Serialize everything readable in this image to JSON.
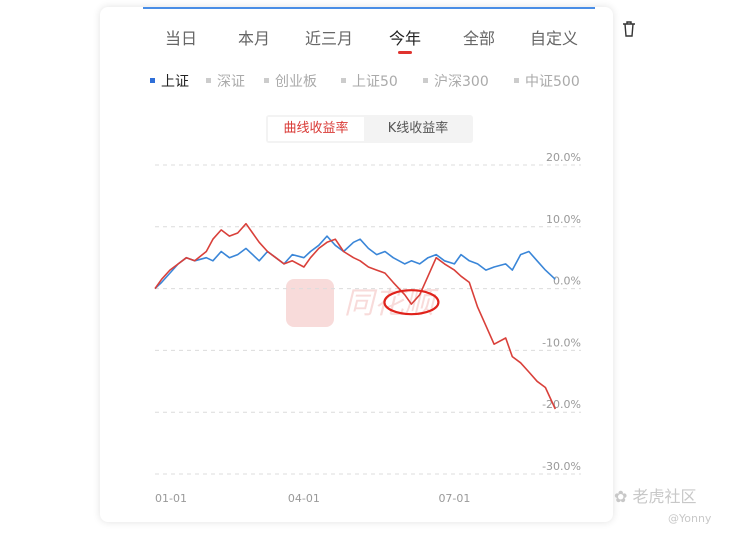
{
  "tabs": [
    "当日",
    "本月",
    "近三月",
    "今年",
    "全部",
    "自定义"
  ],
  "active_tab": "今年",
  "legend": [
    "上证",
    "深证",
    "创业板",
    "上证50",
    "沪深300",
    "中证500"
  ],
  "active_legend": "上证",
  "toggle": {
    "curve_label": "曲线收益率",
    "kline_label": "K线收益率",
    "active": "曲线收益率"
  },
  "watermark_center": "同花顺",
  "watermark_social": "老虎社区",
  "watermark_user": "@Yonny",
  "colors": {
    "user_line": "#d9403a",
    "index_line": "#3a86d8",
    "accent": "#e0332f",
    "highlight_circle": "#e0221b"
  },
  "icons": {
    "trash": "trash-icon",
    "watermark": "tiger-logo-icon"
  },
  "chart_data": {
    "type": "line",
    "x_ticks": [
      "01-01",
      "04-01",
      "07-01"
    ],
    "y_ticks": [
      "20.0%",
      "10.0%",
      "0.0%",
      "-10.0%",
      "-20.0%",
      "-30.0%"
    ],
    "ylim": [
      -30,
      20
    ],
    "grid": true,
    "x_range": [
      "2021-01-01",
      "2021-09-01"
    ],
    "x_tick_dates": [
      "2021-01-01",
      "2021-04-01",
      "2021-07-01"
    ],
    "annotation": "red ellipse around early-June dip",
    "annotation_x": "2021-06-05",
    "annotation_y": -2.2,
    "series": [
      {
        "name": "",
        "x": [
          "2021-01-01",
          "2021-01-05",
          "2021-01-10",
          "2021-01-15",
          "2021-01-20",
          "2021-01-25",
          "2021-02-01",
          "2021-02-05",
          "2021-02-10",
          "2021-02-15",
          "2021-02-20",
          "2021-02-25",
          "2021-03-01",
          "2021-03-05",
          "2021-03-10",
          "2021-03-15",
          "2021-03-20",
          "2021-03-25",
          "2021-04-01",
          "2021-04-05",
          "2021-04-10",
          "2021-04-15",
          "2021-04-20",
          "2021-04-25",
          "2021-05-01",
          "2021-05-05",
          "2021-05-10",
          "2021-05-15",
          "2021-05-20",
          "2021-05-25",
          "2021-06-01",
          "2021-06-05",
          "2021-06-10",
          "2021-06-15",
          "2021-06-20",
          "2021-06-25",
          "2021-07-01",
          "2021-07-05",
          "2021-07-10",
          "2021-07-15",
          "2021-07-20",
          "2021-07-25",
          "2021-08-01",
          "2021-08-05",
          "2021-08-10",
          "2021-08-15",
          "2021-08-20",
          "2021-08-25",
          "2021-08-31"
        ],
        "y": [
          0.0,
          1.5,
          3.0,
          4.0,
          5.0,
          4.5,
          6.0,
          8.0,
          9.5,
          8.5,
          9.0,
          10.5,
          9.0,
          7.5,
          6.0,
          5.0,
          4.0,
          4.5,
          3.5,
          5.0,
          6.5,
          7.5,
          8.0,
          6.0,
          5.0,
          4.5,
          3.5,
          3.0,
          2.5,
          1.0,
          -1.0,
          -2.5,
          -1.0,
          2.0,
          5.0,
          4.0,
          3.0,
          2.0,
          1.0,
          -3.0,
          -6.0,
          -9.0,
          -8.0,
          -11.0,
          -12.0,
          -13.5,
          -15.0,
          -16.0,
          -19.5
        ]
      },
      {
        "name": "上证",
        "x": [
          "2021-01-01",
          "2021-01-05",
          "2021-01-10",
          "2021-01-15",
          "2021-01-20",
          "2021-01-25",
          "2021-02-01",
          "2021-02-05",
          "2021-02-10",
          "2021-02-15",
          "2021-02-20",
          "2021-02-25",
          "2021-03-01",
          "2021-03-05",
          "2021-03-10",
          "2021-03-15",
          "2021-03-20",
          "2021-03-25",
          "2021-04-01",
          "2021-04-05",
          "2021-04-10",
          "2021-04-15",
          "2021-04-20",
          "2021-04-25",
          "2021-05-01",
          "2021-05-05",
          "2021-05-10",
          "2021-05-15",
          "2021-05-20",
          "2021-05-25",
          "2021-06-01",
          "2021-06-05",
          "2021-06-10",
          "2021-06-15",
          "2021-06-20",
          "2021-06-25",
          "2021-07-01",
          "2021-07-05",
          "2021-07-10",
          "2021-07-15",
          "2021-07-20",
          "2021-07-25",
          "2021-08-01",
          "2021-08-05",
          "2021-08-10",
          "2021-08-15",
          "2021-08-20",
          "2021-08-25",
          "2021-08-31"
        ],
        "y": [
          0.0,
          1.0,
          2.5,
          4.0,
          5.0,
          4.5,
          5.0,
          4.5,
          6.0,
          5.0,
          5.5,
          6.5,
          5.5,
          4.5,
          6.0,
          5.0,
          4.0,
          5.5,
          5.0,
          6.0,
          7.0,
          8.5,
          7.0,
          6.0,
          7.5,
          8.0,
          6.5,
          5.5,
          6.0,
          5.0,
          4.0,
          4.5,
          4.0,
          5.0,
          5.5,
          4.5,
          4.0,
          5.5,
          4.5,
          4.0,
          3.0,
          3.5,
          4.0,
          3.0,
          5.5,
          6.0,
          4.5,
          3.0,
          1.5
        ]
      }
    ]
  }
}
